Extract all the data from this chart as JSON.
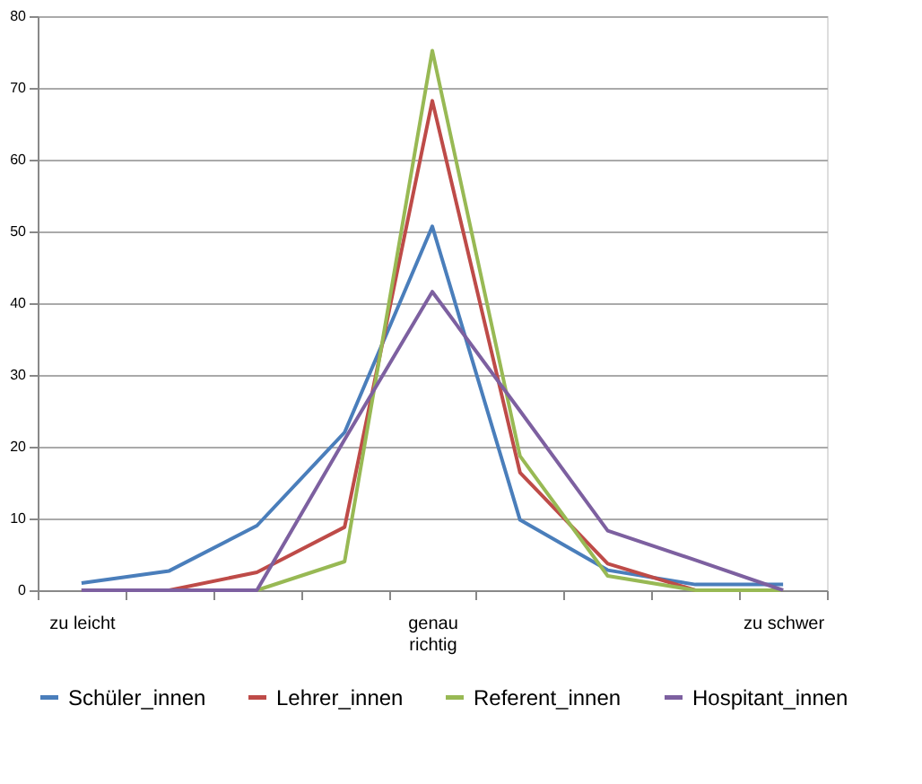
{
  "chart_data": {
    "type": "line",
    "categories": [
      "zu leicht",
      null,
      null,
      null,
      "genau\nrichtig",
      null,
      null,
      null,
      "zu schwer"
    ],
    "series": [
      {
        "name": "Schüler_innen",
        "color": "#4a7ebb",
        "values": [
          1,
          2.7,
          9,
          22,
          50.7,
          9.8,
          2.8,
          0.8,
          0.8
        ]
      },
      {
        "name": "Lehrer_innen",
        "color": "#be4b48",
        "values": [
          0,
          0,
          2.5,
          8.8,
          68.2,
          16.4,
          3.7,
          0,
          0
        ]
      },
      {
        "name": "Referent_innen",
        "color": "#98b954",
        "values": [
          0,
          0,
          0,
          4,
          75.2,
          18.7,
          2,
          0,
          0
        ]
      },
      {
        "name": "Hospitant_innen",
        "color": "#7d60a0",
        "values": [
          0,
          0,
          0,
          21,
          41.6,
          25,
          8.3,
          4.2,
          0
        ]
      }
    ],
    "ylim": [
      0,
      80
    ],
    "yticks": [
      0,
      10,
      20,
      30,
      40,
      50,
      60,
      70,
      80
    ],
    "grid": "y",
    "legend": "bottom",
    "line_style": "solid",
    "marker": "none"
  }
}
